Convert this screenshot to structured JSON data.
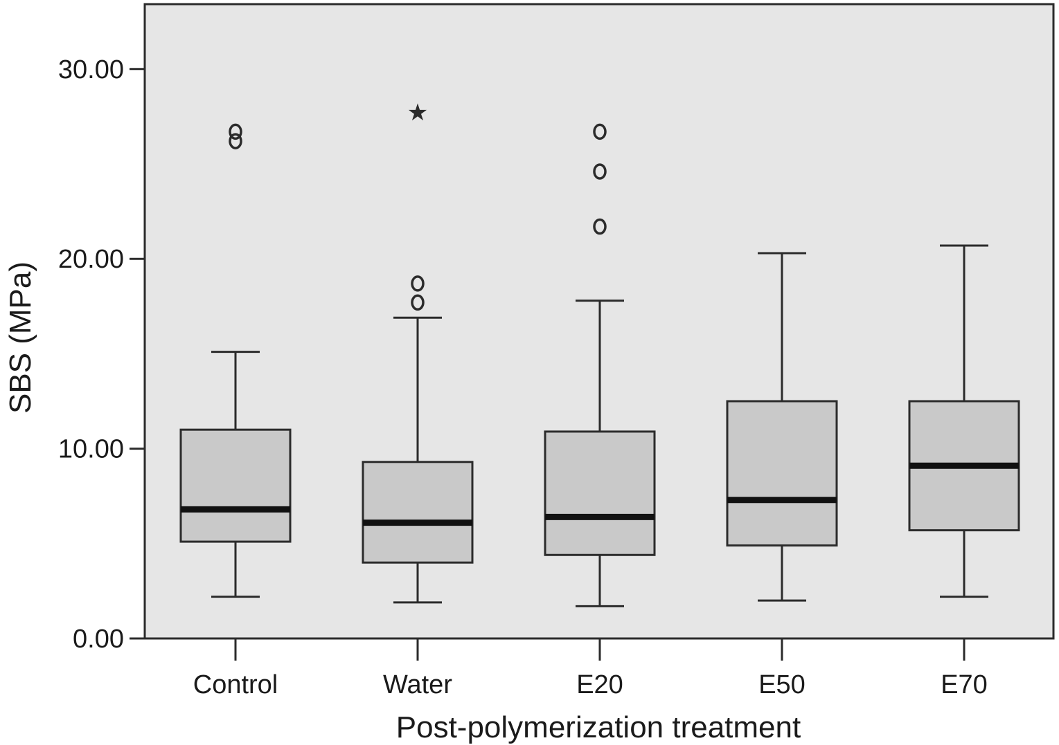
{
  "chart_data": {
    "type": "boxplot",
    "title": "",
    "xlabel": "Post-polymerization treatment",
    "ylabel": "SBS (MPa)",
    "ylim": [
      0,
      33
    ],
    "yticks": [
      0,
      10,
      20,
      30
    ],
    "ytick_labels": [
      "0.00",
      "10.00",
      "20.00",
      "30.00"
    ],
    "categories": [
      "Control",
      "Water",
      "E20",
      "E50",
      "E70"
    ],
    "series": [
      {
        "category": "Control",
        "whisker_low": 2.2,
        "q1": 5.1,
        "median": 6.8,
        "q3": 11.0,
        "whisker_high": 15.1,
        "outliers": [
          {
            "value": 26.2,
            "marker": "circle"
          },
          {
            "value": 26.7,
            "marker": "circle"
          }
        ]
      },
      {
        "category": "Water",
        "whisker_low": 1.9,
        "q1": 4.0,
        "median": 6.1,
        "q3": 9.3,
        "whisker_high": 16.9,
        "outliers": [
          {
            "value": 17.7,
            "marker": "circle"
          },
          {
            "value": 18.7,
            "marker": "circle"
          },
          {
            "value": 27.8,
            "marker": "star"
          }
        ]
      },
      {
        "category": "E20",
        "whisker_low": 1.7,
        "q1": 4.4,
        "median": 6.4,
        "q3": 10.9,
        "whisker_high": 17.8,
        "outliers": [
          {
            "value": 21.7,
            "marker": "circle"
          },
          {
            "value": 24.6,
            "marker": "circle"
          },
          {
            "value": 26.7,
            "marker": "circle"
          }
        ]
      },
      {
        "category": "E50",
        "whisker_low": 2.0,
        "q1": 4.9,
        "median": 7.3,
        "q3": 12.5,
        "whisker_high": 20.3,
        "outliers": []
      },
      {
        "category": "E70",
        "whisker_low": 2.2,
        "q1": 5.7,
        "median": 9.1,
        "q3": 12.5,
        "whisker_high": 20.7,
        "outliers": []
      }
    ],
    "grid": false,
    "legend": "none",
    "colors": {
      "plot_background": "#e6e6e6",
      "box_fill": "#c9c9c9",
      "stroke": "#2b2b2b",
      "median": "#111111"
    }
  }
}
